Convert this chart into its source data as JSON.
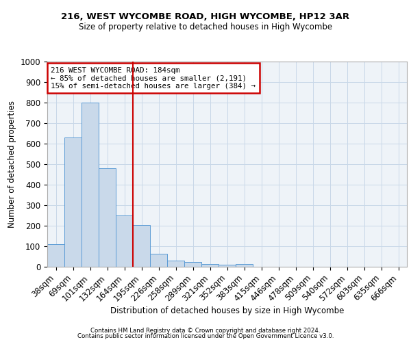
{
  "title1": "216, WEST WYCOMBE ROAD, HIGH WYCOMBE, HP12 3AR",
  "title2": "Size of property relative to detached houses in High Wycombe",
  "xlabel": "Distribution of detached houses by size in High Wycombe",
  "ylabel": "Number of detached properties",
  "bar_labels": [
    "38sqm",
    "69sqm",
    "101sqm",
    "132sqm",
    "164sqm",
    "195sqm",
    "226sqm",
    "258sqm",
    "289sqm",
    "321sqm",
    "352sqm",
    "383sqm",
    "415sqm",
    "446sqm",
    "478sqm",
    "509sqm",
    "540sqm",
    "572sqm",
    "603sqm",
    "635sqm",
    "666sqm"
  ],
  "bar_values": [
    110,
    630,
    800,
    480,
    250,
    205,
    62,
    30,
    22,
    12,
    10,
    12,
    0,
    0,
    0,
    0,
    0,
    0,
    0,
    0,
    0
  ],
  "bar_color": "#c9d9ea",
  "bar_edgecolor": "#5b9bd5",
  "property_line_x": 4.5,
  "annotation_text": "216 WEST WYCOMBE ROAD: 184sqm\n← 85% of detached houses are smaller (2,191)\n15% of semi-detached houses are larger (384) →",
  "annotation_box_color": "#cc0000",
  "ylim": [
    0,
    1000
  ],
  "yticks": [
    0,
    100,
    200,
    300,
    400,
    500,
    600,
    700,
    800,
    900,
    1000
  ],
  "grid_color": "#c8d8e8",
  "bg_color": "#eef3f8",
  "footer1": "Contains HM Land Registry data © Crown copyright and database right 2024.",
  "footer2": "Contains public sector information licensed under the Open Government Licence v3.0."
}
